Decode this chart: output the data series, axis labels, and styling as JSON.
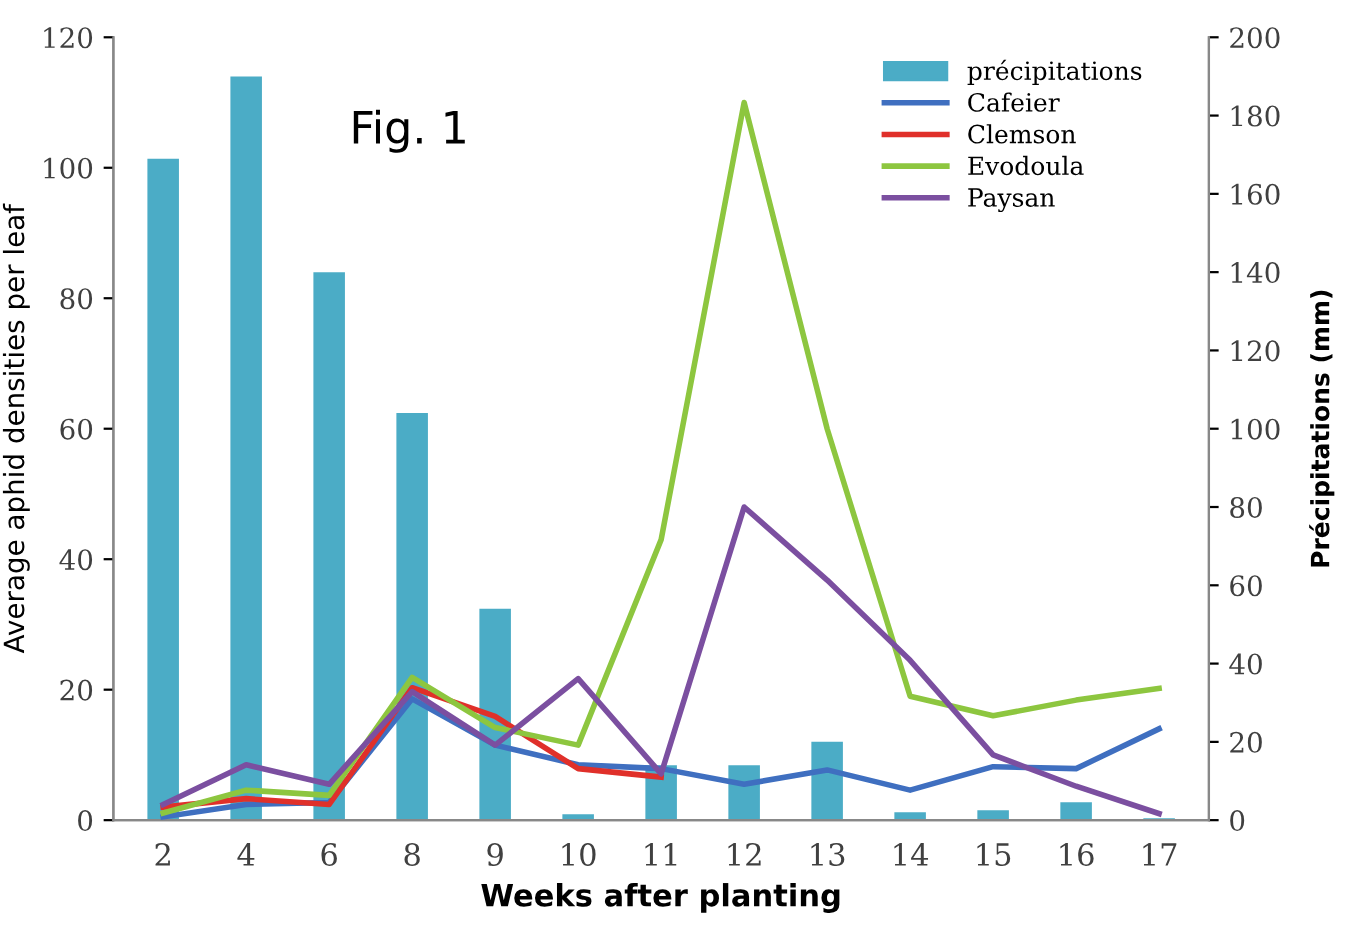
{
  "chart_data": {
    "type": "line",
    "annotations": [
      "Fig. 1"
    ],
    "xlabel": "Weeks after planting",
    "ylabel": "Average aphid densities per leaf",
    "y2label": "Précipitations (mm)",
    "categories": [
      "2",
      "4",
      "6",
      "8",
      "9",
      "10",
      "11",
      "12",
      "13",
      "14",
      "15",
      "16",
      "17"
    ],
    "series": [
      {
        "name": "précipitations",
        "type": "bar",
        "axis": "y2",
        "color": "#4bacc6",
        "values": [
          169,
          190,
          140,
          104,
          54,
          1.5,
          14,
          14,
          20,
          2,
          2.5,
          4.6,
          0.5
        ]
      },
      {
        "name": "Cafeier",
        "color": "#3f6fc0",
        "values": [
          0.5,
          2.4,
          2.7,
          18.6,
          11.5,
          8.5,
          7.9,
          5.5,
          7.7,
          4.6,
          8.2,
          7.9,
          14
        ]
      },
      {
        "name": "Clemson",
        "color": "#e0302a",
        "values": [
          2,
          3.3,
          2.4,
          20.3,
          15.9,
          7.9,
          6.6,
          null,
          null,
          null,
          null,
          null,
          null
        ]
      },
      {
        "name": "Evodoula",
        "color": "#8dc63f",
        "values": [
          1.1,
          4.6,
          3.8,
          21.9,
          14.2,
          11.5,
          43,
          110,
          60,
          19,
          16,
          18.4,
          20.2
        ]
      },
      {
        "name": "Paysan",
        "color": "#7b4fa0",
        "values": [
          2.4,
          8.5,
          5.5,
          19.7,
          11.5,
          21.7,
          7.1,
          48,
          36.8,
          24.5,
          10,
          5.2,
          1
        ]
      }
    ],
    "ylim": [
      0,
      120
    ],
    "yticks": [
      0,
      20,
      40,
      60,
      80,
      100,
      120
    ],
    "y2lim": [
      0,
      200
    ],
    "y2ticks": [
      0,
      20,
      40,
      60,
      80,
      100,
      120,
      140,
      160,
      180,
      200
    ],
    "legend": "top right",
    "grid": false,
    "marker": "none",
    "line_style": "solid"
  }
}
